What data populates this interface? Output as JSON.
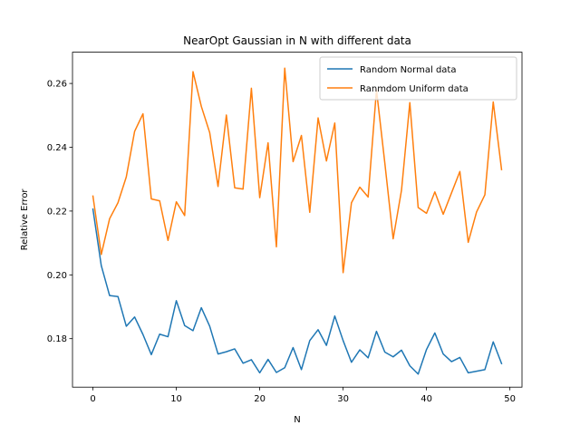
{
  "chart_data": {
    "type": "line",
    "title": "NearOpt Gaussian in N with different data",
    "xlabel": "N",
    "ylabel": "Relative Error",
    "xlim": [
      -2.45,
      51.45
    ],
    "ylim": [
      0.1648,
      0.2698
    ],
    "xticks": [
      0,
      10,
      20,
      30,
      40,
      50
    ],
    "yticks": [
      0.18,
      0.2,
      0.22,
      0.24,
      0.26
    ],
    "ytick_labels": [
      "0.18",
      "0.20",
      "0.22",
      "0.24",
      "0.26"
    ],
    "grid": false,
    "legend": "upper-right",
    "x": [
      0,
      1,
      2,
      3,
      4,
      5,
      6,
      7,
      8,
      9,
      10,
      11,
      12,
      13,
      14,
      15,
      16,
      17,
      18,
      19,
      20,
      21,
      22,
      23,
      24,
      25,
      26,
      27,
      28,
      29,
      30,
      31,
      32,
      33,
      34,
      35,
      36,
      37,
      38,
      39,
      40,
      41,
      42,
      43,
      44,
      45,
      46,
      47,
      48,
      49
    ],
    "series": [
      {
        "name": "Random Normal data",
        "color": "#1f77b4",
        "values": [
          0.2206,
          0.2029,
          0.1935,
          0.1932,
          0.1839,
          0.1868,
          0.1813,
          0.175,
          0.1814,
          0.1806,
          0.1919,
          0.1841,
          0.1825,
          0.1897,
          0.1839,
          0.1752,
          0.1759,
          0.1768,
          0.1723,
          0.1734,
          0.1693,
          0.1735,
          0.1694,
          0.1709,
          0.1772,
          0.1703,
          0.1794,
          0.1828,
          0.1779,
          0.1871,
          0.1794,
          0.1726,
          0.1765,
          0.174,
          0.1823,
          0.1758,
          0.1743,
          0.1764,
          0.1715,
          0.1689,
          0.1766,
          0.1818,
          0.1752,
          0.1728,
          0.1741,
          0.1693,
          0.1698,
          0.1703,
          0.179,
          0.1722
        ]
      },
      {
        "name": "Ranmdom Uniform data",
        "color": "#ff7f0e",
        "values": [
          0.2247,
          0.2064,
          0.2176,
          0.2226,
          0.2307,
          0.245,
          0.2505,
          0.2238,
          0.2232,
          0.2108,
          0.2229,
          0.2186,
          0.2637,
          0.2528,
          0.2446,
          0.2277,
          0.2501,
          0.2273,
          0.2269,
          0.2585,
          0.2242,
          0.2414,
          0.2088,
          0.2648,
          0.2355,
          0.2437,
          0.2196,
          0.2492,
          0.2357,
          0.2476,
          0.2007,
          0.2226,
          0.2275,
          0.2244,
          0.258,
          0.2351,
          0.2113,
          0.2265,
          0.254,
          0.2211,
          0.2193,
          0.226,
          0.219,
          0.2257,
          0.2324,
          0.2102,
          0.2197,
          0.2251,
          0.2542,
          0.233
        ]
      }
    ]
  }
}
